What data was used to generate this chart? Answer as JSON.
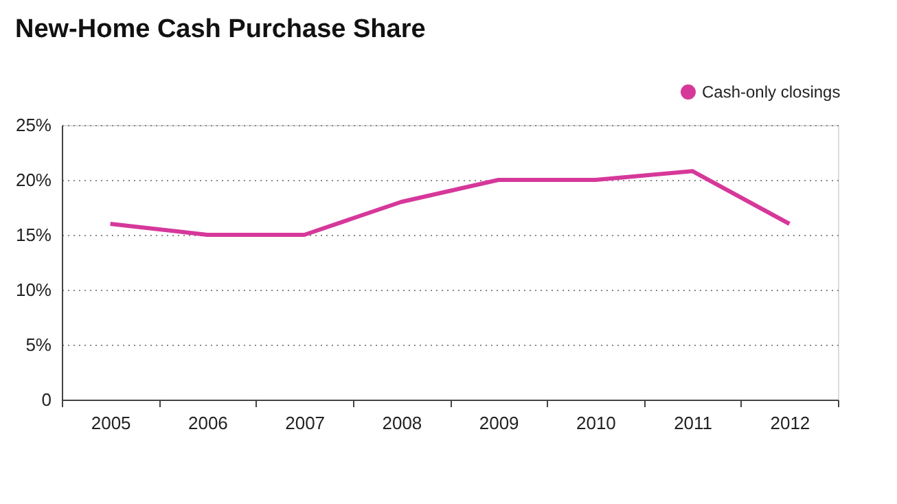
{
  "chart_data": {
    "type": "line",
    "title": "New-Home Cash Purchase Share",
    "categories": [
      "2005",
      "2006",
      "2007",
      "2008",
      "2009",
      "2010",
      "2011",
      "2012"
    ],
    "series": [
      {
        "name": "Cash-only closings",
        "color": "#d6389a",
        "values": [
          16,
          15,
          15,
          18,
          20,
          20,
          20.8,
          16
        ]
      }
    ],
    "ylim": [
      0,
      25
    ],
    "yticks": [
      0,
      {
        "value": 5,
        "label": "5%"
      },
      {
        "value": 10,
        "label": "10%"
      },
      {
        "value": 15,
        "label": "15%"
      },
      {
        "value": 20,
        "label": "20%"
      },
      {
        "value": 25,
        "label": "25%"
      }
    ],
    "grid": "y",
    "legend": "top right",
    "marker": "none",
    "line_style": "solid"
  }
}
